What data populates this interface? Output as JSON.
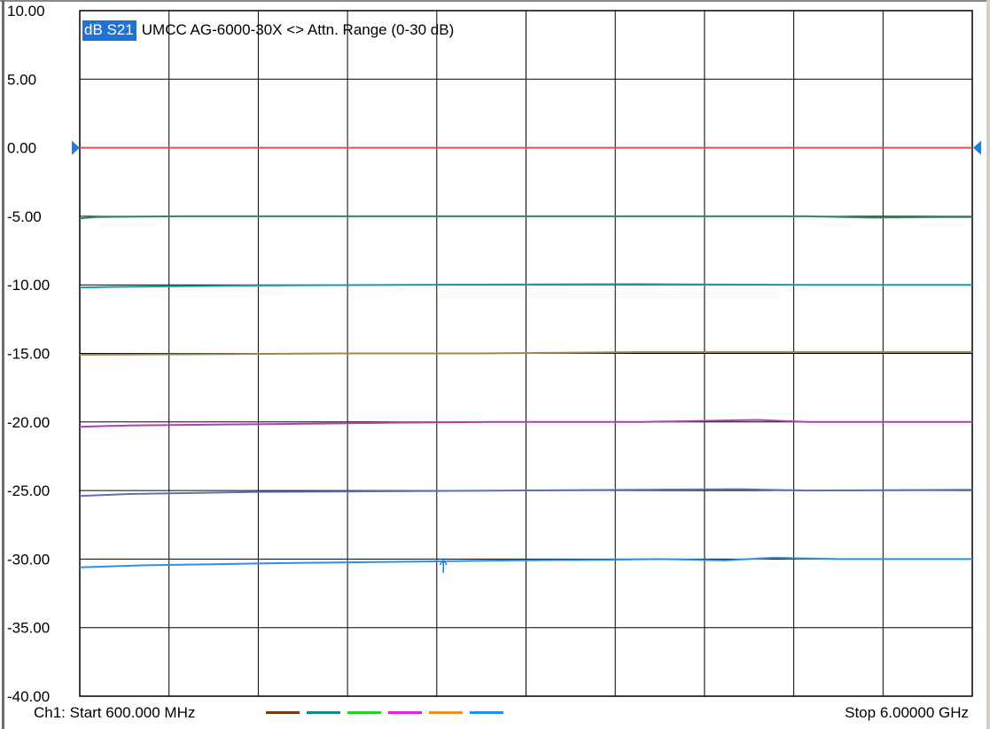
{
  "chart_data": {
    "type": "line",
    "title": "UMCC  AG-6000-30X <> Attn. Range (0-30 dB)",
    "trace_label": "dB S21",
    "xlabel": "",
    "ylabel": "",
    "x_start_label": "Ch1: Start  600.000 MHz",
    "x_stop_label": "Stop  6.00000 GHz",
    "xlim": [
      600,
      6000
    ],
    "x_unit": "MHz",
    "ylim": [
      -40,
      10
    ],
    "yticks": [
      10,
      5,
      0,
      -5,
      -10,
      -15,
      -20,
      -25,
      -30,
      -35,
      -40
    ],
    "ytick_labels": [
      "10.00",
      "5.00",
      "0.00",
      "-5.00",
      "-10.00",
      "-15.00",
      "-20.00",
      "-25.00",
      "-30.00",
      "-35.00",
      "-40.00"
    ],
    "x_divisions": 10,
    "grid": true,
    "reference_level": 0,
    "series": [
      {
        "color": "#e05050",
        "x": [
          600,
          6000
        ],
        "y": [
          0.0,
          0.0
        ]
      },
      {
        "color": "#2e8b57",
        "x": [
          600,
          700,
          1200,
          2000,
          3500,
          5000,
          5400,
          5800,
          6000
        ],
        "y": [
          -5.15,
          -5.05,
          -5.0,
          -5.0,
          -5.0,
          -5.0,
          -5.1,
          -5.05,
          -5.05
        ]
      },
      {
        "color": "#1f9aa5",
        "x": [
          600,
          800,
          1600,
          2500,
          4000,
          5000,
          6000
        ],
        "y": [
          -10.2,
          -10.15,
          -10.05,
          -10.0,
          -9.95,
          -10.0,
          -10.0
        ]
      },
      {
        "color": "#9a8a50",
        "x": [
          600,
          1500,
          2200,
          3000,
          4000,
          5000,
          6000
        ],
        "y": [
          -15.1,
          -15.05,
          -15.0,
          -15.0,
          -14.9,
          -14.9,
          -14.9
        ]
      },
      {
        "color": "#b040b0",
        "x": [
          600,
          900,
          1800,
          2500,
          3100,
          4000,
          4700,
          5000,
          6000
        ],
        "y": [
          -20.35,
          -20.25,
          -20.15,
          -20.05,
          -20.0,
          -20.0,
          -19.85,
          -20.0,
          -20.0
        ]
      },
      {
        "color": "#5a70b5",
        "x": [
          600,
          900,
          1700,
          2500,
          3200,
          4000,
          4600,
          5000,
          6000
        ],
        "y": [
          -25.4,
          -25.25,
          -25.1,
          -25.05,
          -25.0,
          -24.95,
          -24.9,
          -25.0,
          -24.95
        ]
      },
      {
        "color": "#2f8fe0",
        "x": [
          600,
          1000,
          1800,
          2500,
          3200,
          3800,
          4100,
          4500,
          4800,
          5200,
          6000
        ],
        "y": [
          -30.6,
          -30.45,
          -30.3,
          -30.2,
          -30.1,
          -30.05,
          -30.0,
          -30.1,
          -29.9,
          -30.0,
          -30.0
        ]
      }
    ],
    "legend_colors": [
      "#7a3b10",
      "#138a8a",
      "#23d023",
      "#e020e0",
      "#f08c20",
      "#2090f0"
    ],
    "accent_colors": {
      "ref_marker": "#1e7fd8",
      "trace_label_bg": "#1f73d6"
    }
  }
}
